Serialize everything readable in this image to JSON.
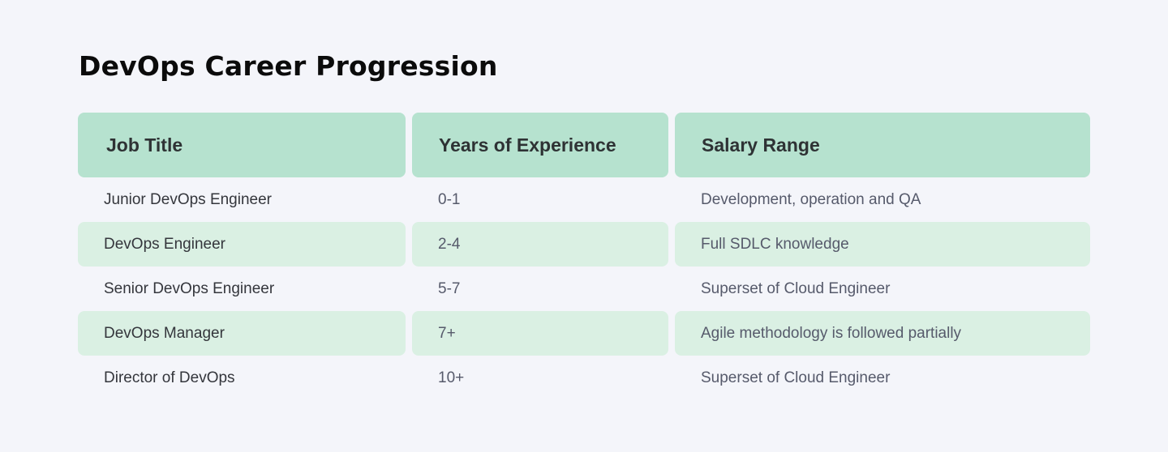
{
  "page": {
    "title": "DevOps Career Progression"
  },
  "table": {
    "headers": [
      "Job Title",
      "Years of Experience",
      "Salary Range"
    ],
    "rows": [
      [
        "Junior DevOps Engineer",
        "0-1",
        "Development, operation and QA"
      ],
      [
        "DevOps Engineer",
        "2-4",
        "Full SDLC knowledge"
      ],
      [
        "Senior DevOps Engineer",
        "5-7",
        "Superset of Cloud Engineer"
      ],
      [
        "DevOps Manager",
        "7+",
        "Agile methodology is followed partially"
      ],
      [
        "Director of DevOps",
        "10+",
        "Superset of Cloud Engineer"
      ]
    ]
  },
  "colors": {
    "background": "#f4f5fa",
    "header_bg": "#b6e2cf",
    "alt_row_bg": "#daf0e3",
    "title_text": "#0b0b0b",
    "header_text": "#2e3234",
    "body_text": "#565a6b"
  }
}
